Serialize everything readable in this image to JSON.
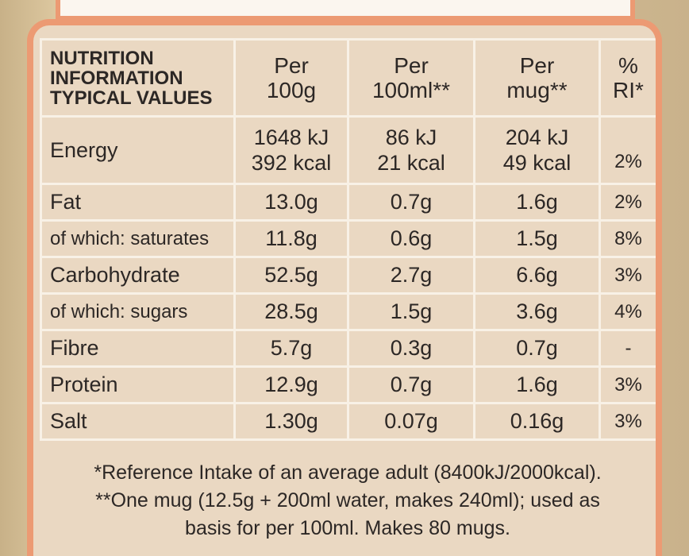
{
  "header": {
    "label_lines": [
      "NUTRITION",
      "INFORMATION",
      "TYPICAL VALUES"
    ],
    "columns": [
      {
        "line1": "Per",
        "line2": "100g"
      },
      {
        "line1": "Per",
        "line2": "100ml**"
      },
      {
        "line1": "Per",
        "line2": "mug**"
      },
      {
        "line1": "%",
        "line2": "RI*"
      }
    ]
  },
  "energy": {
    "name": "Energy",
    "per100g": [
      "1648 kJ",
      "392 kcal"
    ],
    "per100ml": [
      "86 kJ",
      "21 kcal"
    ],
    "permug": [
      "204 kJ",
      "49 kcal"
    ],
    "ri": "2%"
  },
  "rows": [
    {
      "name": "Fat",
      "sub": false,
      "per100g": "13.0g",
      "per100ml": "0.7g",
      "permug": "1.6g",
      "ri": "2%"
    },
    {
      "name": "of which: saturates",
      "sub": true,
      "per100g": "11.8g",
      "per100ml": "0.6g",
      "permug": "1.5g",
      "ri": "8%"
    },
    {
      "name": "Carbohydrate",
      "sub": false,
      "per100g": "52.5g",
      "per100ml": "2.7g",
      "permug": "6.6g",
      "ri": "3%"
    },
    {
      "name": "of which: sugars",
      "sub": true,
      "per100g": "28.5g",
      "per100ml": "1.5g",
      "permug": "3.6g",
      "ri": "4%"
    },
    {
      "name": "Fibre",
      "sub": false,
      "per100g": "5.7g",
      "per100ml": "0.3g",
      "permug": "0.7g",
      "ri": "-"
    },
    {
      "name": "Protein",
      "sub": false,
      "per100g": "12.9g",
      "per100ml": "0.7g",
      "permug": "1.6g",
      "ri": "3%"
    },
    {
      "name": "Salt",
      "sub": false,
      "per100g": "1.30g",
      "per100ml": "0.07g",
      "permug": "0.16g",
      "ri": "3%"
    }
  ],
  "footnotes": [
    "*Reference Intake of an average adult (8400kJ/2000kcal).",
    "**One mug (12.5g + 200ml water, makes 240ml); used as",
    "basis for per 100ml. Makes 80 mugs."
  ],
  "colors": {
    "border": "#ec9a73",
    "panel": "#ead8c2",
    "grid": "#f8f1e6",
    "text": "#2c2725",
    "packaging": "#d8c39b"
  }
}
